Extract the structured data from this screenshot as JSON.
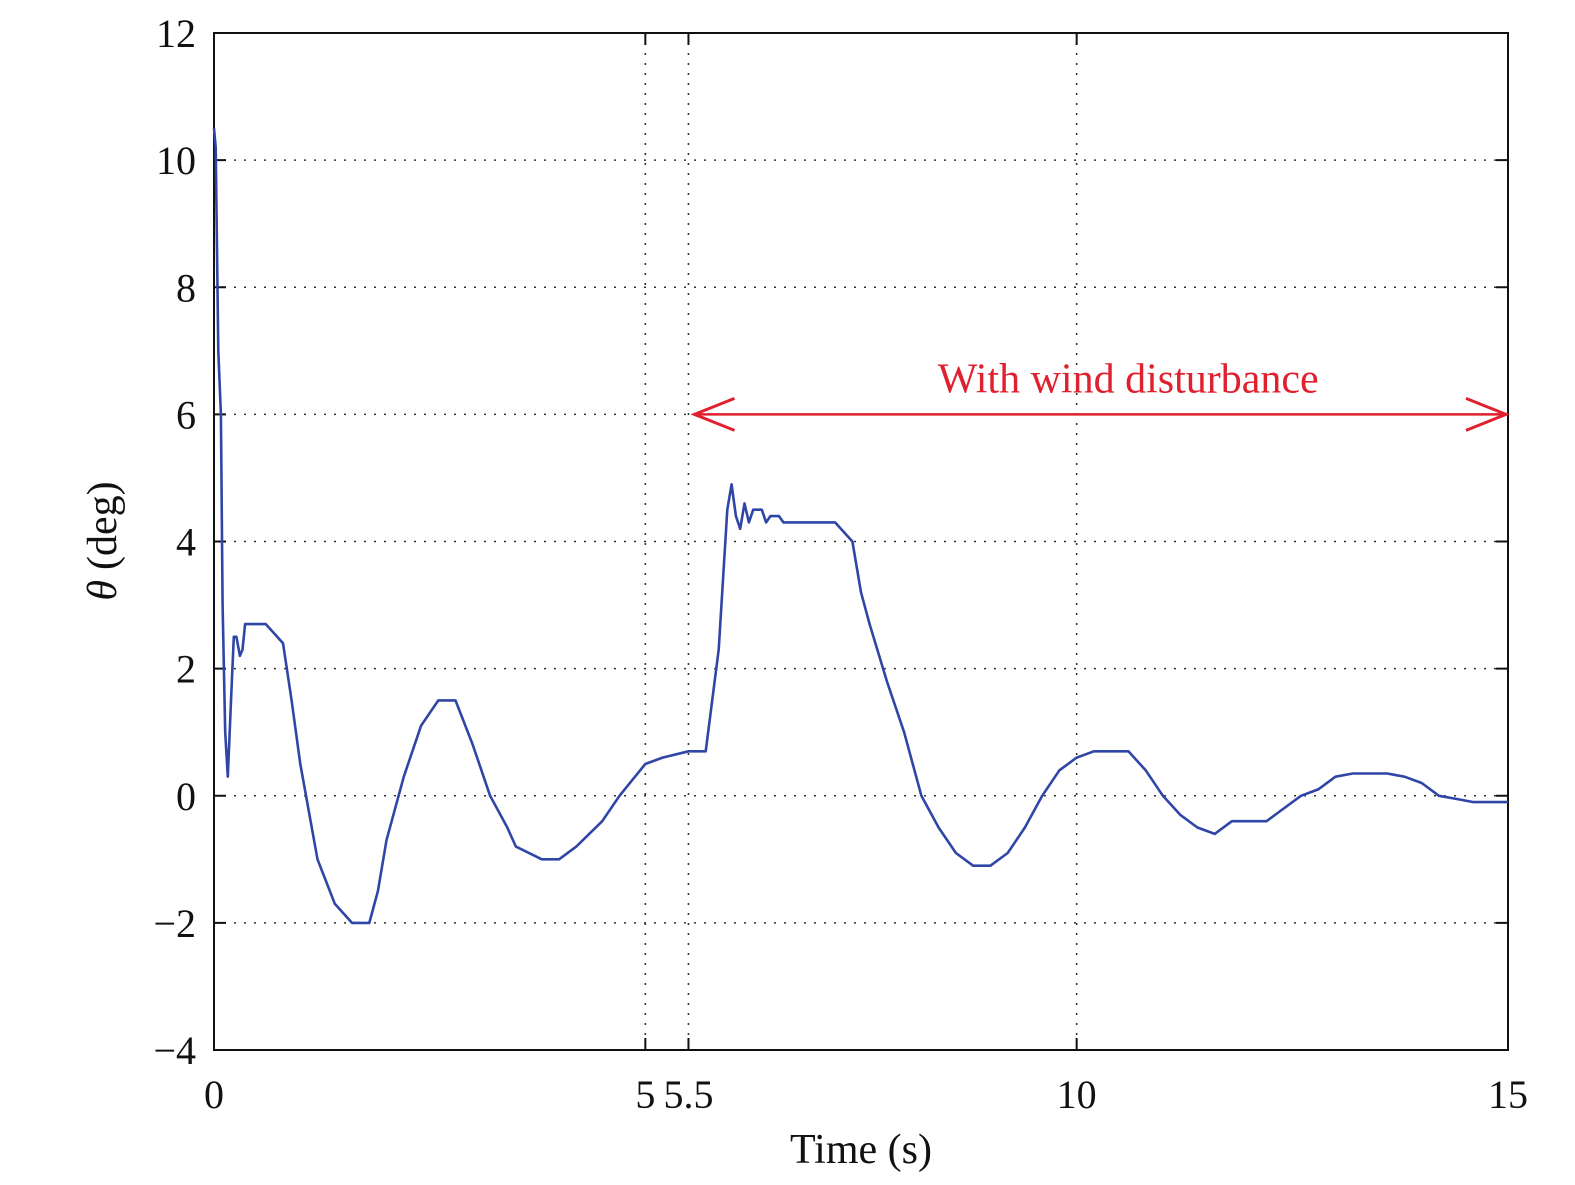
{
  "chart_data": {
    "type": "line",
    "title": "",
    "xlabel": "Time (s)",
    "ylabel": "(deg)",
    "ylabel_symbol": "θ",
    "xlim": [
      0,
      15
    ],
    "ylim": [
      -4,
      12
    ],
    "grid": true,
    "x_ticks": [
      0,
      5,
      5.5,
      10,
      15
    ],
    "x_tick_labels": [
      "0",
      "5",
      "5.5",
      "10",
      "15"
    ],
    "y_ticks": [
      -4,
      -2,
      0,
      2,
      4,
      6,
      8,
      10,
      12
    ],
    "y_tick_labels": [
      "−4",
      "−2",
      "0",
      "2",
      "4",
      "6",
      "8",
      "10",
      "12"
    ],
    "colors": {
      "series": "#3046a6",
      "annotation": "#e0202e"
    },
    "annotation": {
      "text": "With wind disturbance",
      "arrow_x": [
        5.5,
        15
      ],
      "arrow_y": 6
    },
    "series": [
      {
        "x": [
          0,
          0.02,
          0.05,
          0.08,
          0.1,
          0.13,
          0.16,
          0.2,
          0.23,
          0.26,
          0.3,
          0.33,
          0.36,
          0.4,
          0.5,
          0.6,
          0.8,
          0.9,
          1.0,
          1.2,
          1.4,
          1.6,
          1.8,
          1.9,
          2.0,
          2.2,
          2.4,
          2.6,
          2.8,
          3.0,
          3.2,
          3.4,
          3.5,
          3.8,
          4.0,
          4.2,
          4.5,
          4.7,
          5.0,
          5.2,
          5.5,
          5.7,
          5.85,
          5.95,
          6.0,
          6.05,
          6.1,
          6.15,
          6.2,
          6.25,
          6.3,
          6.35,
          6.4,
          6.45,
          6.5,
          6.55,
          6.6,
          6.7,
          6.8,
          7.0,
          7.2,
          7.4,
          7.5,
          7.6,
          7.8,
          8.0,
          8.2,
          8.4,
          8.6,
          8.8,
          9.0,
          9.2,
          9.4,
          9.6,
          9.8,
          10.0,
          10.2,
          10.4,
          10.6,
          10.8,
          11.0,
          11.2,
          11.4,
          11.6,
          11.8,
          12.0,
          12.2,
          12.4,
          12.6,
          12.8,
          13.0,
          13.2,
          13.4,
          13.6,
          13.8,
          14.0,
          14.2,
          14.4,
          14.6,
          14.8,
          15.0
        ],
        "y": [
          10.5,
          10.2,
          7.0,
          6.0,
          3.0,
          1.0,
          0.3,
          1.6,
          2.5,
          2.5,
          2.2,
          2.3,
          2.7,
          2.7,
          2.7,
          2.7,
          2.4,
          1.5,
          0.5,
          -1.0,
          -1.7,
          -2.0,
          -2.0,
          -1.5,
          -0.7,
          0.3,
          1.1,
          1.5,
          1.5,
          0.8,
          0.0,
          -0.5,
          -0.8,
          -1.0,
          -1.0,
          -0.8,
          -0.4,
          0.0,
          0.5,
          0.6,
          0.7,
          0.7,
          2.3,
          4.5,
          4.9,
          4.4,
          4.2,
          4.6,
          4.3,
          4.5,
          4.5,
          4.5,
          4.3,
          4.4,
          4.4,
          4.4,
          4.3,
          4.3,
          4.3,
          4.3,
          4.3,
          4.0,
          3.2,
          2.7,
          1.8,
          1.0,
          0.0,
          -0.5,
          -0.9,
          -1.1,
          -1.1,
          -0.9,
          -0.5,
          0.0,
          0.4,
          0.6,
          0.7,
          0.7,
          0.7,
          0.4,
          0.0,
          -0.3,
          -0.5,
          -0.6,
          -0.4,
          -0.4,
          -0.4,
          -0.2,
          0.0,
          0.1,
          0.3,
          0.35,
          0.35,
          0.35,
          0.3,
          0.2,
          0.0,
          -0.05,
          -0.1,
          -0.1,
          -0.1
        ]
      }
    ]
  }
}
